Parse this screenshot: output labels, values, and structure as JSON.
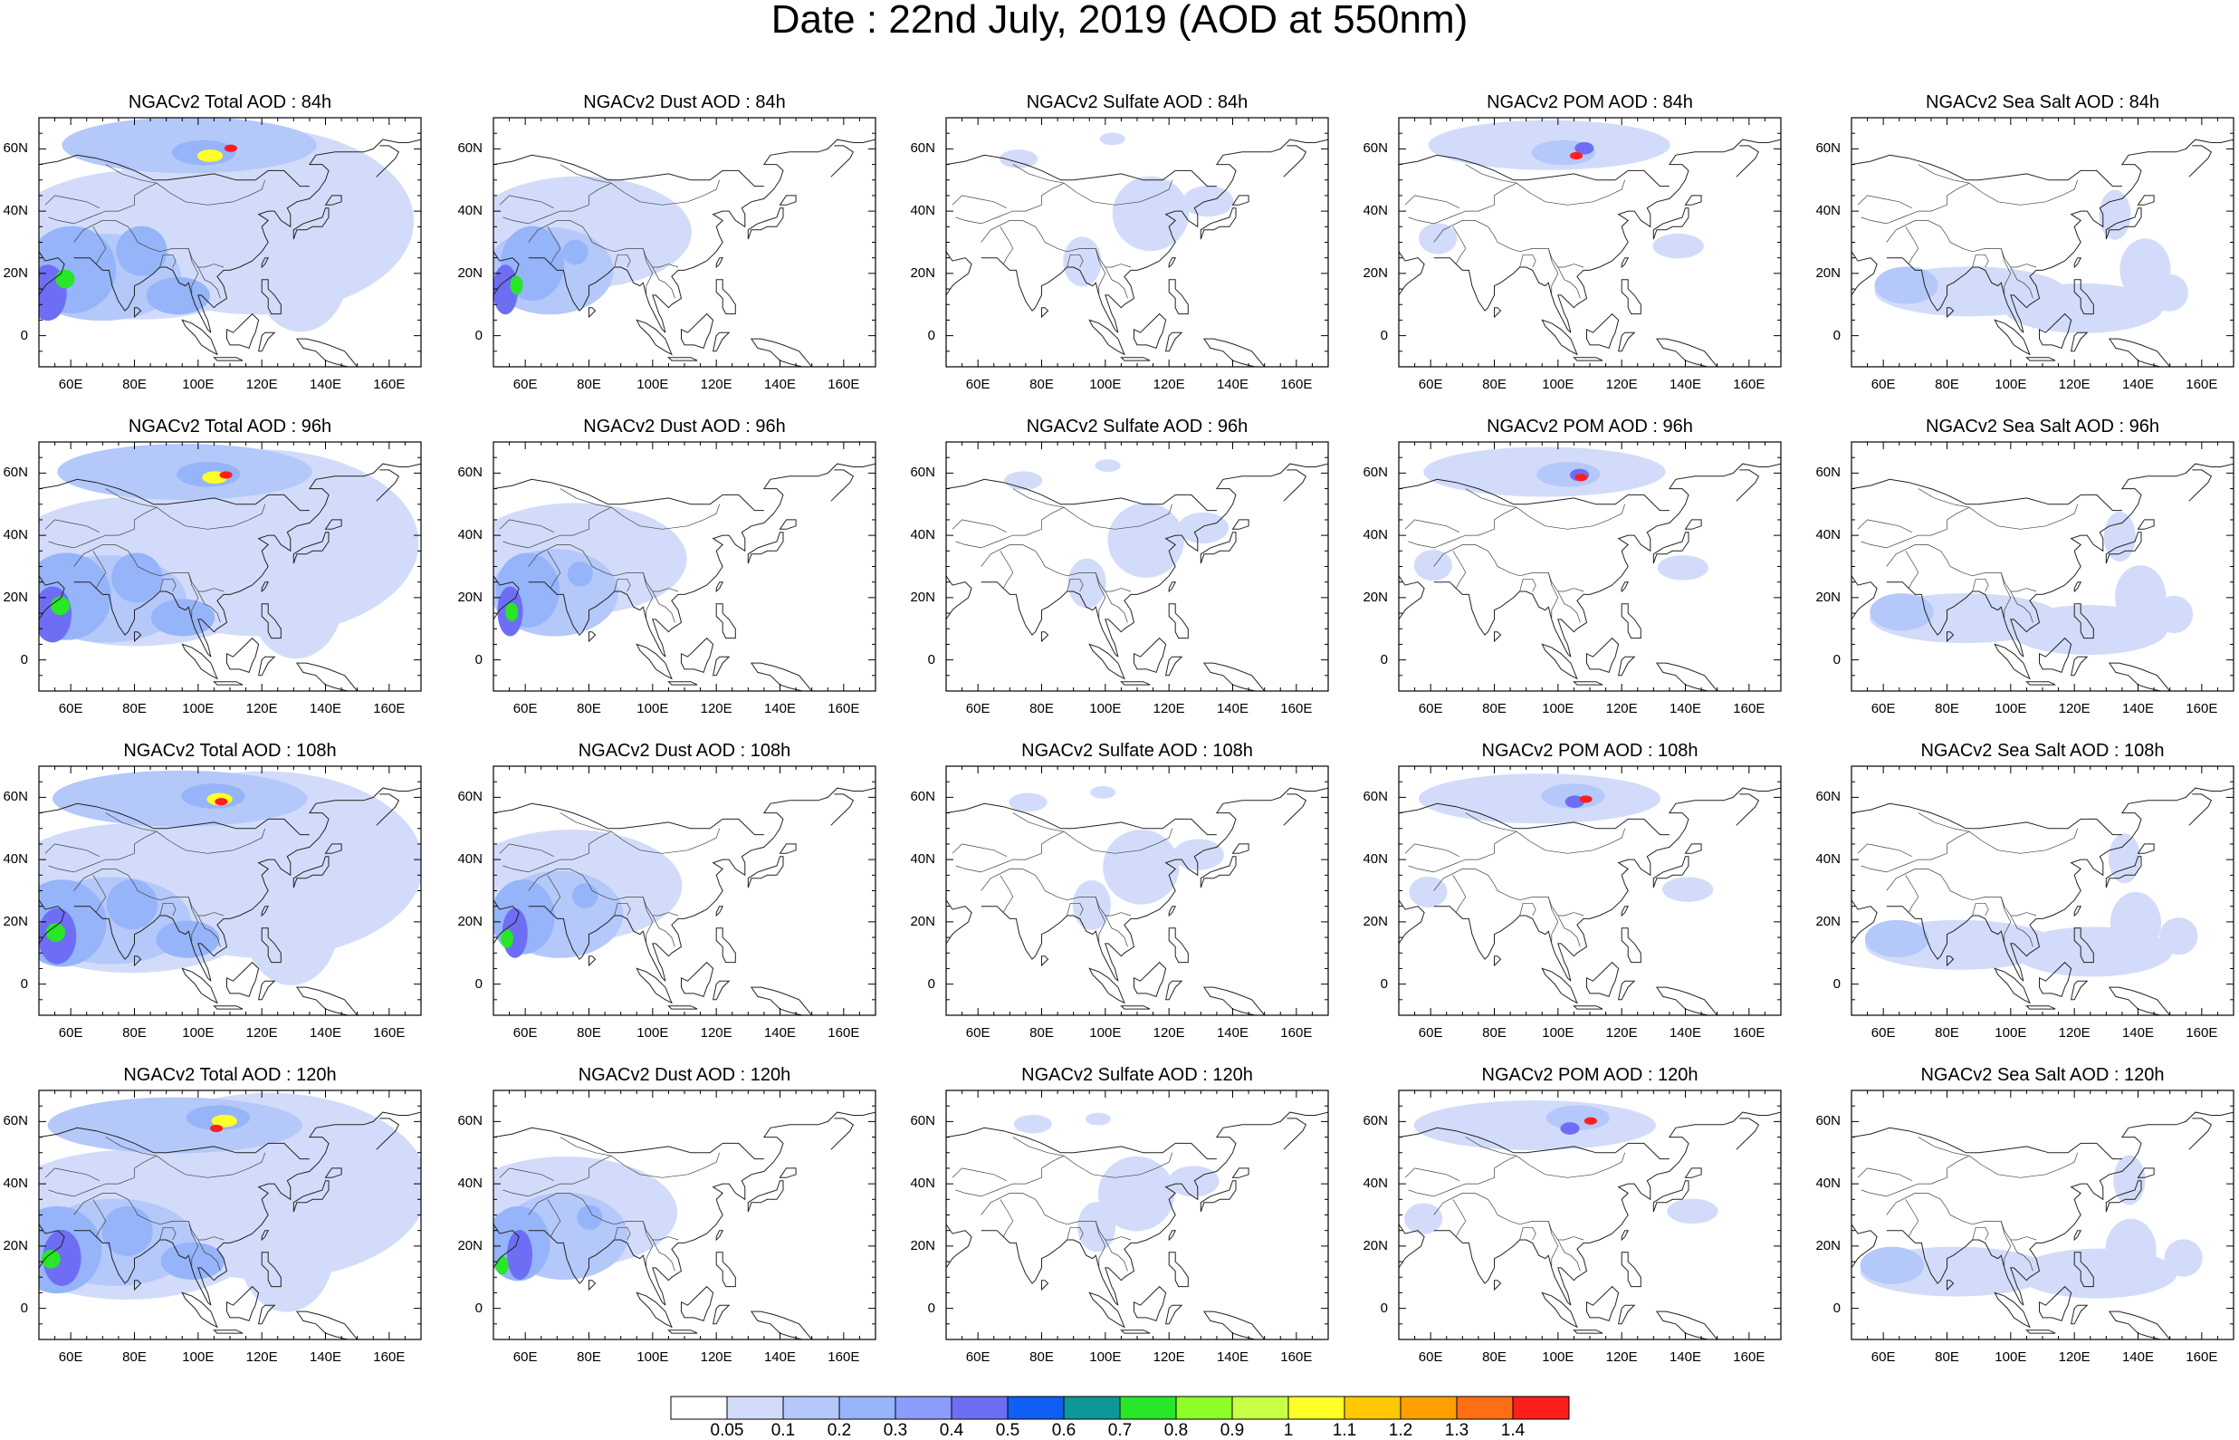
{
  "figure_title": "Date : 22nd July, 2019 (AOD at 550nm)",
  "lon_tick_labels": [
    "60E",
    "80E",
    "100E",
    "120E",
    "140E",
    "160E"
  ],
  "lat_tick_labels": [
    "60N",
    "40N",
    "20N",
    "0"
  ],
  "lon_ticks": [
    60,
    80,
    100,
    120,
    140,
    160
  ],
  "lat_ticks": [
    60,
    40,
    20,
    0
  ],
  "map_extent": {
    "lon_min": 50,
    "lon_max": 170,
    "lat_min": -10,
    "lat_max": 70
  },
  "panels": [
    [
      {
        "title": "NGACv2 Total AOD : 84h",
        "species": "total"
      },
      {
        "title": "NGACv2 Dust AOD : 84h",
        "species": "dust"
      },
      {
        "title": "NGACv2 Sulfate AOD : 84h",
        "species": "sulfate"
      },
      {
        "title": "NGACv2 POM AOD : 84h",
        "species": "pom"
      },
      {
        "title": "NGACv2 Sea Salt AOD : 84h",
        "species": "seasalt"
      }
    ],
    [
      {
        "title": "NGACv2 Total AOD : 96h",
        "species": "total"
      },
      {
        "title": "NGACv2 Dust AOD : 96h",
        "species": "dust"
      },
      {
        "title": "NGACv2 Sulfate AOD : 96h",
        "species": "sulfate"
      },
      {
        "title": "NGACv2 POM AOD : 96h",
        "species": "pom"
      },
      {
        "title": "NGACv2 Sea Salt AOD : 96h",
        "species": "seasalt"
      }
    ],
    [
      {
        "title": "NGACv2 Total AOD : 108h",
        "species": "total"
      },
      {
        "title": "NGACv2 Dust AOD : 108h",
        "species": "dust"
      },
      {
        "title": "NGACv2 Sulfate AOD : 108h",
        "species": "sulfate"
      },
      {
        "title": "NGACv2 POM AOD : 108h",
        "species": "pom"
      },
      {
        "title": "NGACv2 Sea Salt AOD : 108h",
        "species": "seasalt"
      }
    ],
    [
      {
        "title": "NGACv2 Total AOD : 120h",
        "species": "total"
      },
      {
        "title": "NGACv2 Dust AOD : 120h",
        "species": "dust"
      },
      {
        "title": "NGACv2 Sulfate AOD : 120h",
        "species": "sulfate"
      },
      {
        "title": "NGACv2 POM AOD : 120h",
        "species": "pom"
      },
      {
        "title": "NGACv2 Sea Salt  AOD : 120h",
        "species": "seasalt"
      }
    ]
  ],
  "colorbar": {
    "labels": [
      "0.05",
      "0.1",
      "0.2",
      "0.3",
      "0.4",
      "0.5",
      "0.6",
      "0.7",
      "0.8",
      "0.9",
      "1",
      "1.1",
      "1.2",
      "1.3",
      "1.4"
    ],
    "colors": [
      "#ffffff",
      "#d2dcfa",
      "#b4c8fa",
      "#96b4fa",
      "#8c9cfa",
      "#6e6ef5",
      "#0f5ff5",
      "#0f9696",
      "#28e628",
      "#8cff28",
      "#c8ff46",
      "#ffff28",
      "#ffc800",
      "#ffa000",
      "#ff6e14",
      "#ff1e1e"
    ]
  }
}
